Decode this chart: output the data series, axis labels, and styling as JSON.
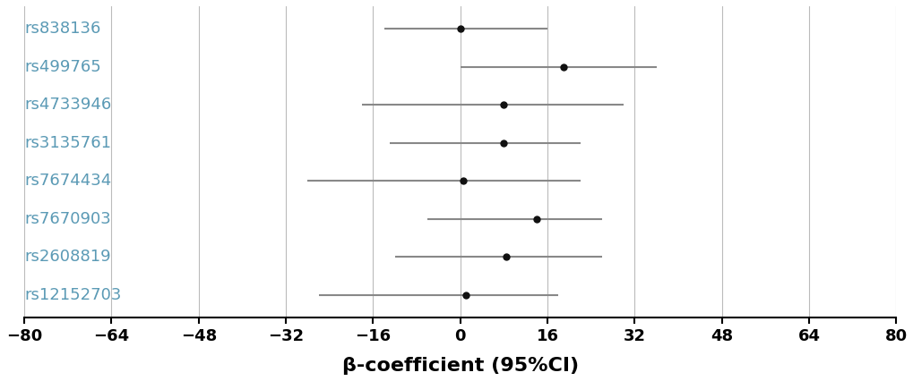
{
  "variants": [
    "rs838136",
    "rs499765",
    "rs4733946",
    "rs3135761",
    "rs7674434",
    "rs7670903",
    "rs2608819",
    "rs12152703"
  ],
  "point_estimates": [
    0.0,
    19.0,
    8.0,
    8.0,
    0.5,
    14.0,
    8.5,
    1.0
  ],
  "ci_low": [
    -14.0,
    0.0,
    -18.0,
    -13.0,
    -28.0,
    -6.0,
    -12.0,
    -26.0
  ],
  "ci_high": [
    16.0,
    36.0,
    30.0,
    22.0,
    22.0,
    26.0,
    26.0,
    18.0
  ],
  "xlim": [
    -80,
    80
  ],
  "xticks": [
    -80,
    -64,
    -48,
    -32,
    -16,
    0,
    16,
    32,
    48,
    64,
    80
  ],
  "xlabel": "β-coefficient (95%CI)",
  "gridline_color": "#bbbbbb",
  "label_color": "#5b9ab5",
  "point_color": "#111111",
  "line_color": "#888888",
  "background_color": "#ffffff",
  "figsize": [
    10.2,
    4.26
  ],
  "dpi": 100,
  "label_fontsize": 13,
  "tick_fontsize": 13,
  "xlabel_fontsize": 16
}
